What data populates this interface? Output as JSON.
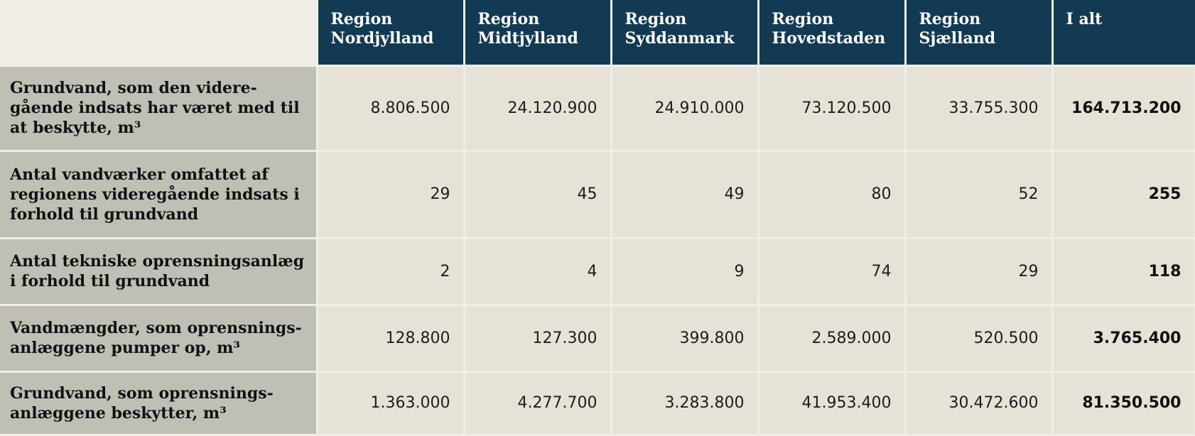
{
  "table": {
    "columns": [
      {
        "line1": "Region",
        "line2": "Nordjylland"
      },
      {
        "line1": "Region",
        "line2": "Midtjylland"
      },
      {
        "line1": "Region",
        "line2": "Syddanmark"
      },
      {
        "line1": "Region",
        "line2": "Hovedstaden"
      },
      {
        "line1": "Region",
        "line2": "Sjælland"
      },
      {
        "line1": "I alt",
        "line2": ""
      }
    ],
    "rows": [
      {
        "label_lines": [
          "Grundvand, som den videre-",
          "gående indsats har været med til",
          "at beskytte, m³"
        ],
        "values": [
          "8.806.500",
          "24.120.900",
          "24.910.000",
          "73.120.500",
          "33.755.300"
        ],
        "total": "164.713.200"
      },
      {
        "label_lines": [
          "Antal vandværker omfattet af",
          "regionens videregående indsats i",
          "forhold til grundvand"
        ],
        "values": [
          "29",
          "45",
          "49",
          "80",
          "52"
        ],
        "total": "255"
      },
      {
        "label_lines": [
          "Antal tekniske oprensningsanlæg",
          "i forhold til grundvand"
        ],
        "values": [
          "2",
          "4",
          "9",
          "74",
          "29"
        ],
        "total": "118"
      },
      {
        "label_lines": [
          "Vandmængder, som oprensnings-",
          "anlæggene pumper op, m³"
        ],
        "values": [
          "128.800",
          "127.300",
          "399.800",
          "2.589.000",
          "520.500"
        ],
        "total": "3.765.400"
      },
      {
        "label_lines": [
          "Grundvand, som oprensnings-",
          "anlæggene beskytter, m³"
        ],
        "values": [
          "1.363.000",
          "4.277.700",
          "3.283.800",
          "41.953.400",
          "30.472.600"
        ],
        "total": "81.350.500"
      }
    ]
  }
}
